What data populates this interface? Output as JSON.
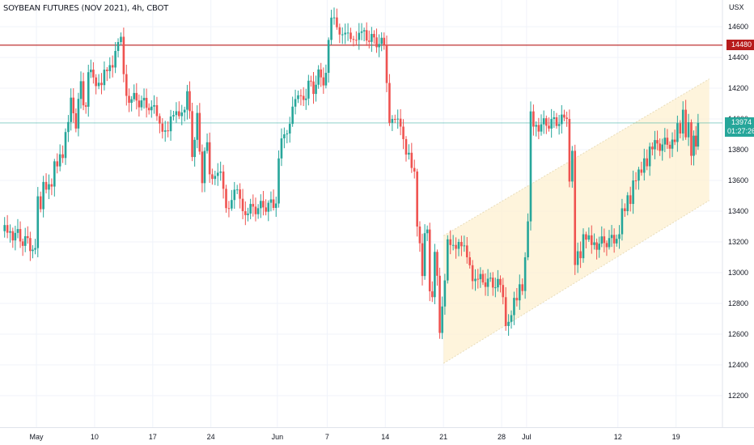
{
  "header": {
    "title": "SOYBEAN FUTURES (NOV 2021), 4h, CBOT",
    "currency": "USX"
  },
  "price_axis": {
    "labels": [
      "14600",
      "14400",
      "14200",
      "14000",
      "13800",
      "13600",
      "13400",
      "13200",
      "13000",
      "12800",
      "12600",
      "12400",
      "12200"
    ]
  },
  "markers": {
    "resistance_label": "14480",
    "last_price_label": "13974",
    "countdown_label": "01:27:26"
  },
  "colors": {
    "up": "#26a69a",
    "down": "#ef5350",
    "resistance": "#b71c1c",
    "channel_fill": "#fdf0d0",
    "channel_line": "#e8dcb8",
    "last_price": "#26a69a"
  },
  "chart_data": {
    "type": "candlestick",
    "title": "SOYBEAN FUTURES (NOV 2021), 4h, CBOT",
    "ylim": [
      12000,
      14800
    ],
    "xlim": [
      "2021-04-29",
      "2021-07-24"
    ],
    "x_tick_labels": [
      {
        "label": "May",
        "date": "2021-05-03"
      },
      {
        "label": "10",
        "date": "2021-05-10"
      },
      {
        "label": "17",
        "date": "2021-05-17"
      },
      {
        "label": "24",
        "date": "2021-05-24"
      },
      {
        "label": "Jun",
        "date": "2021-06-01"
      },
      {
        "label": "7",
        "date": "2021-06-07"
      },
      {
        "label": "14",
        "date": "2021-06-14"
      },
      {
        "label": "21",
        "date": "2021-06-21"
      },
      {
        "label": "28",
        "date": "2021-06-28"
      },
      {
        "label": "Jul",
        "date": "2021-07-01"
      },
      {
        "label": "12",
        "date": "2021-07-12"
      },
      {
        "label": "19",
        "date": "2021-07-19"
      }
    ],
    "horizontal_line": 14480,
    "last_price": 13974,
    "channel": {
      "lower": [
        {
          "date": "2021-06-21",
          "price": 12410
        },
        {
          "date": "2021-07-23",
          "price": 13470
        }
      ],
      "upper": [
        {
          "date": "2021-06-21",
          "price": 13240
        },
        {
          "date": "2021-07-23",
          "price": 14260
        }
      ]
    },
    "series": [
      {
        "points": [
          {
            "date": "2021-04-29",
            "close": 13270
          },
          {
            "date": "2021-04-30",
            "close": 13160
          },
          {
            "date": "2021-05-03",
            "close": 13590
          },
          {
            "date": "2021-05-04",
            "close": 13560
          },
          {
            "date": "2021-05-05",
            "close": 13770
          },
          {
            "date": "2021-05-06",
            "close": 13980
          },
          {
            "date": "2021-05-07",
            "close": 14270
          },
          {
            "date": "2021-05-10",
            "close": 14220
          },
          {
            "date": "2021-05-11",
            "close": 14350
          },
          {
            "date": "2021-05-12",
            "close": 14500
          },
          {
            "date": "2021-05-13",
            "close": 14150
          },
          {
            "date": "2021-05-14",
            "close": 14080
          },
          {
            "date": "2021-05-17",
            "close": 13970
          },
          {
            "date": "2021-05-18",
            "close": 13920
          },
          {
            "date": "2021-05-19",
            "close": 14050
          },
          {
            "date": "2021-05-20",
            "close": 14060
          },
          {
            "date": "2021-05-21",
            "close": 13640
          },
          {
            "date": "2021-05-24",
            "close": 13650
          },
          {
            "date": "2021-05-25",
            "close": 13420
          },
          {
            "date": "2021-05-26",
            "close": 13540
          },
          {
            "date": "2021-05-27",
            "close": 13400
          },
          {
            "date": "2021-05-28",
            "close": 13450
          },
          {
            "date": "2021-06-01",
            "close": 13900
          },
          {
            "date": "2021-06-02",
            "close": 14080
          },
          {
            "date": "2021-06-03",
            "close": 14150
          },
          {
            "date": "2021-06-04",
            "close": 14300
          },
          {
            "date": "2021-06-07",
            "close": 14660
          },
          {
            "date": "2021-06-08",
            "close": 14550
          },
          {
            "date": "2021-06-09",
            "close": 14520
          },
          {
            "date": "2021-06-10",
            "close": 14560
          },
          {
            "date": "2021-06-11",
            "close": 14480
          },
          {
            "date": "2021-06-14",
            "close": 14000
          },
          {
            "date": "2021-06-15",
            "close": 13950
          },
          {
            "date": "2021-06-16",
            "close": 13780
          },
          {
            "date": "2021-06-17",
            "close": 13300
          },
          {
            "date": "2021-06-18",
            "close": 12780
          },
          {
            "date": "2021-06-21",
            "close": 13180
          },
          {
            "date": "2021-06-22",
            "close": 13200
          },
          {
            "date": "2021-06-23",
            "close": 13100
          },
          {
            "date": "2021-06-24",
            "close": 12960
          },
          {
            "date": "2021-06-25",
            "close": 12920
          },
          {
            "date": "2021-06-28",
            "close": 12680
          },
          {
            "date": "2021-06-29",
            "close": 12820
          },
          {
            "date": "2021-06-30",
            "close": 13100
          },
          {
            "date": "2021-07-01",
            "close": 13950
          },
          {
            "date": "2021-07-02",
            "close": 14000
          },
          {
            "date": "2021-07-06",
            "close": 13050
          },
          {
            "date": "2021-07-07",
            "close": 13250
          },
          {
            "date": "2021-07-08",
            "close": 13180
          },
          {
            "date": "2021-07-09",
            "close": 13220
          },
          {
            "date": "2021-07-12",
            "close": 13400
          },
          {
            "date": "2021-07-13",
            "close": 13600
          },
          {
            "date": "2021-07-14",
            "close": 13650
          },
          {
            "date": "2021-07-15",
            "close": 13820
          },
          {
            "date": "2021-07-16",
            "close": 13850
          },
          {
            "date": "2021-07-19",
            "close": 14060
          },
          {
            "date": "2021-07-20",
            "close": 13760
          },
          {
            "date": "2021-07-21",
            "close": 13974
          }
        ]
      }
    ]
  }
}
